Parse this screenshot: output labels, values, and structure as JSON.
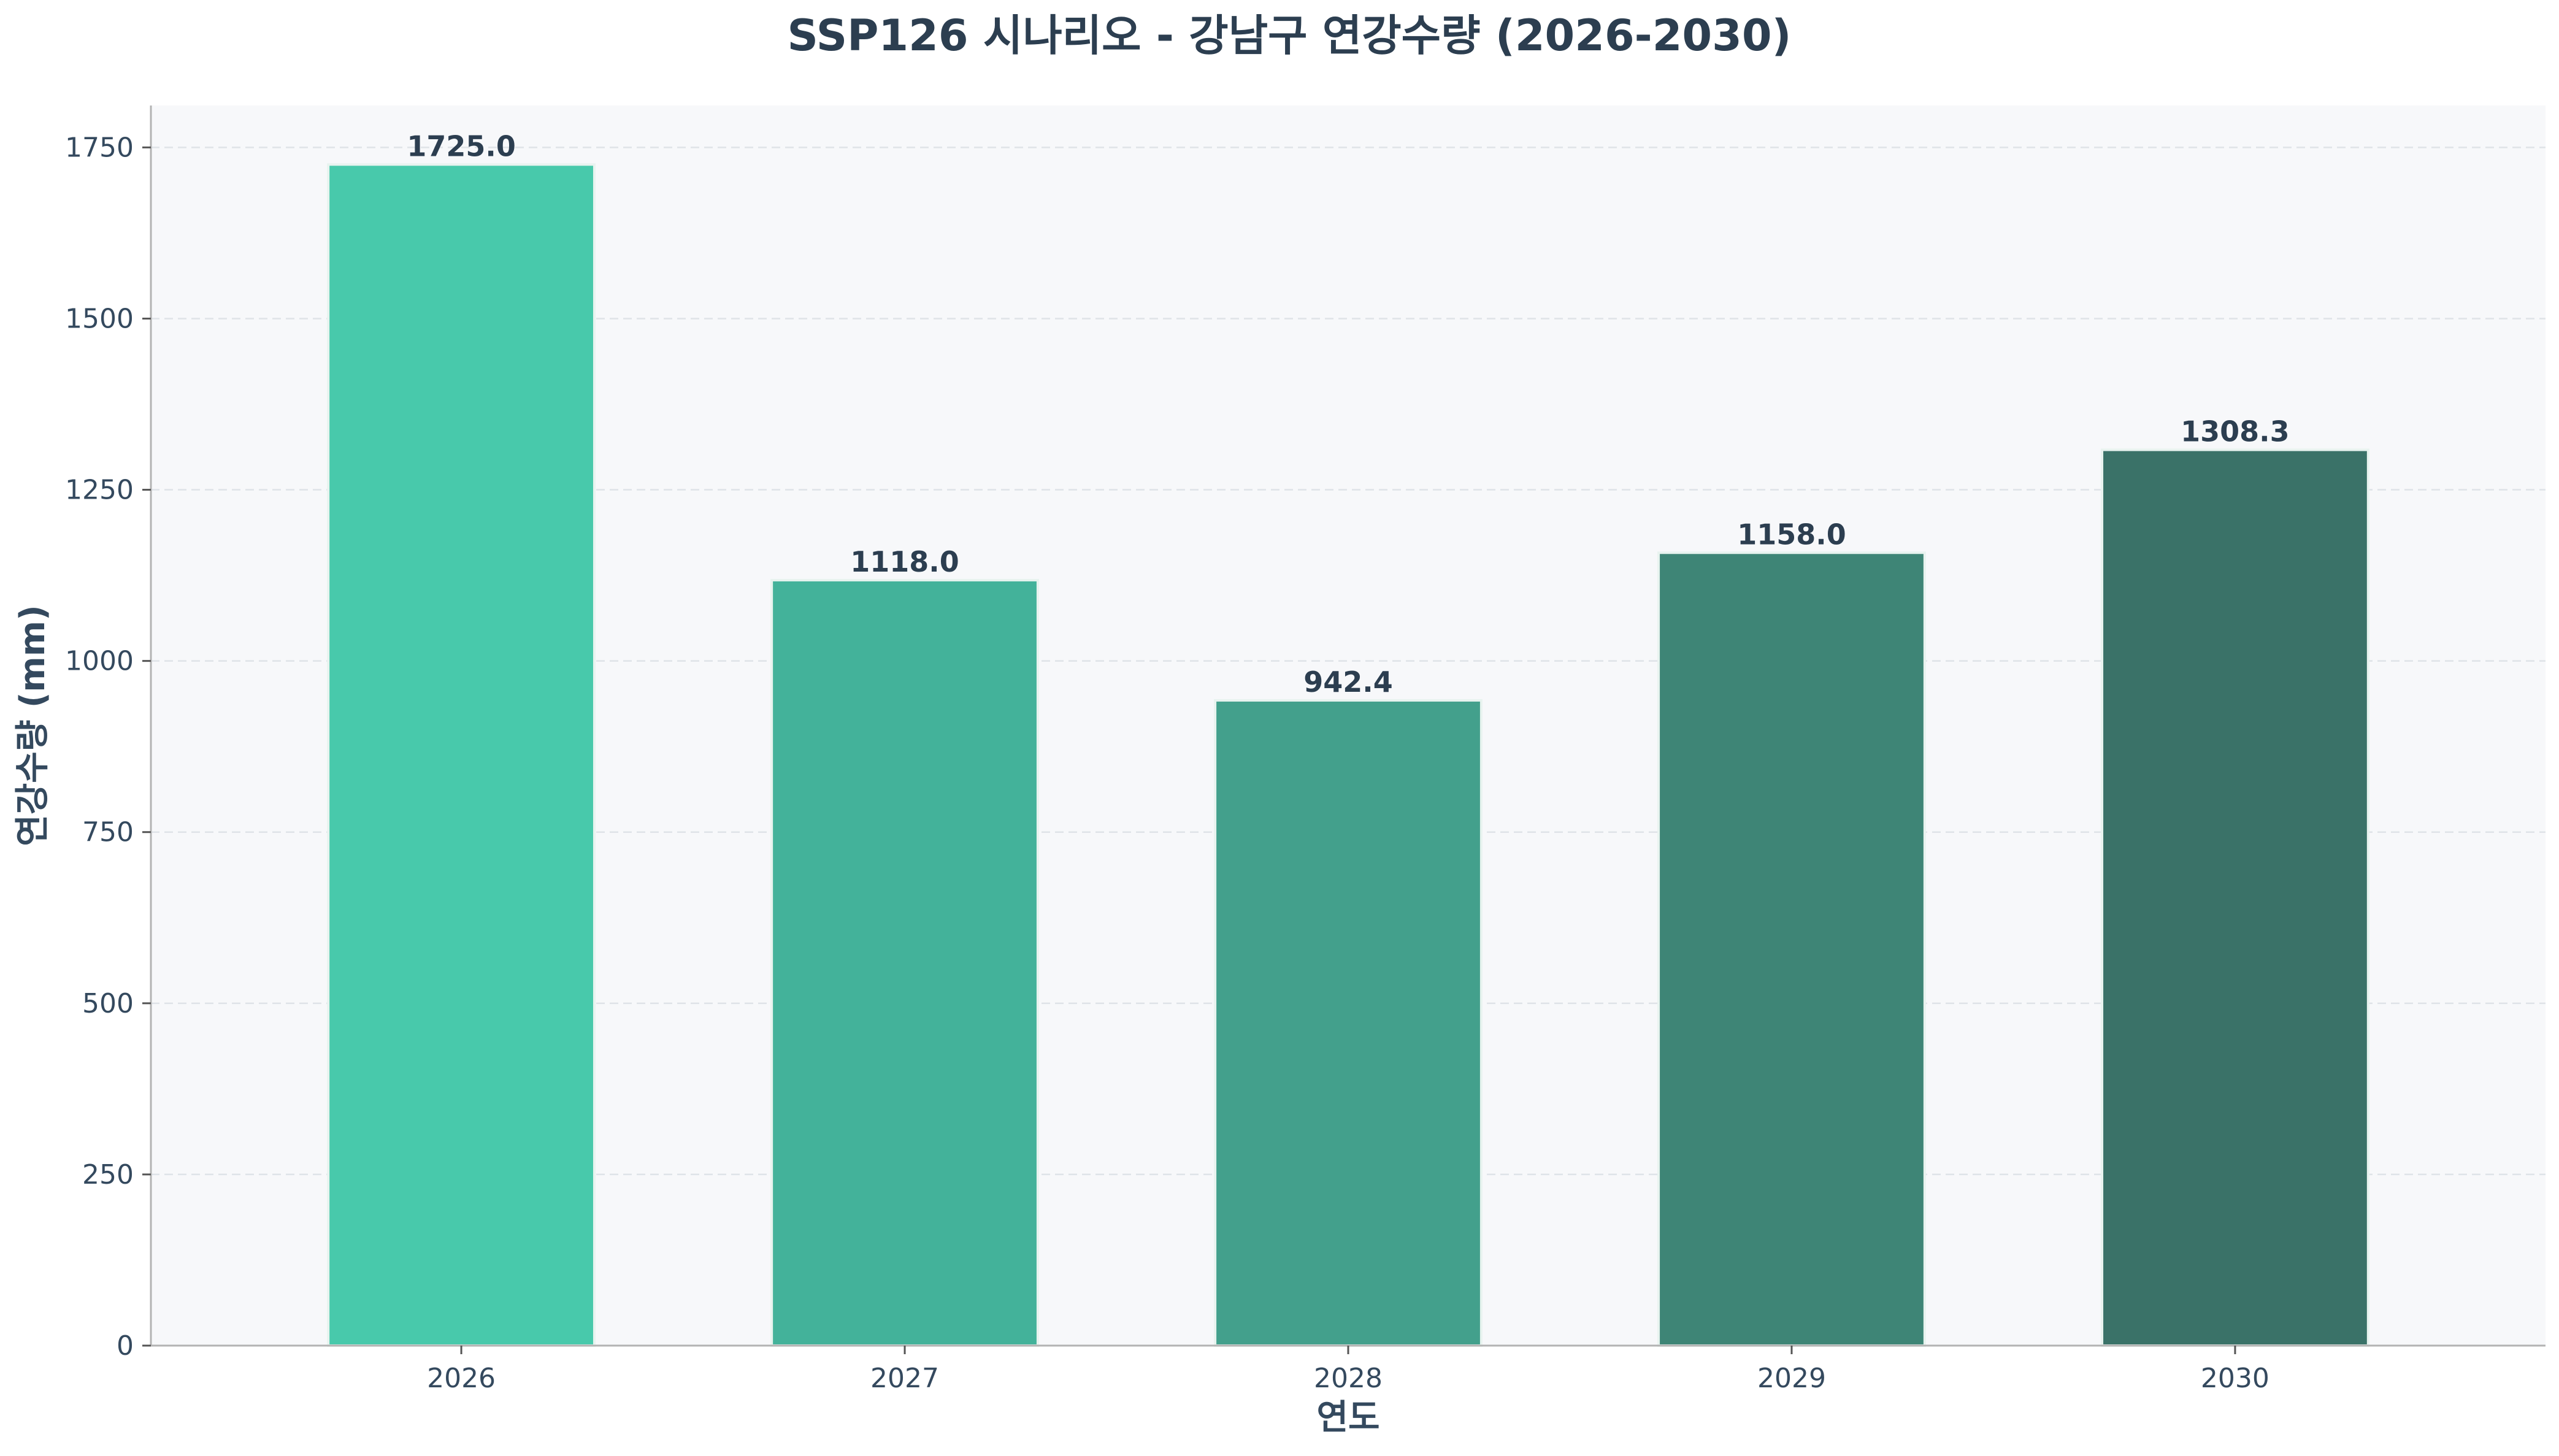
{
  "chart_data": {
    "type": "bar",
    "title": "SSP126 시나리오 - 강남구 연강수량 (2026-2030)",
    "xlabel": "연도",
    "ylabel": "연강수량 (mm)",
    "categories": [
      "2026",
      "2027",
      "2028",
      "2029",
      "2030"
    ],
    "values": [
      1725.0,
      1118.0,
      942.4,
      1158.0,
      1308.3
    ],
    "value_labels": [
      "1725.0",
      "1118.0",
      "942.4",
      "1158.0",
      "1308.3"
    ],
    "ylim": [
      0,
      1811.25
    ],
    "yticks": [
      0,
      250,
      500,
      750,
      1000,
      1250,
      1500,
      1750
    ],
    "bar_colors": [
      "#48c9ab",
      "#43b29a",
      "#43a08c",
      "#3e8576",
      "#3a7268"
    ],
    "plot_background": "#f7f8fa",
    "grid": true,
    "legend": null
  }
}
